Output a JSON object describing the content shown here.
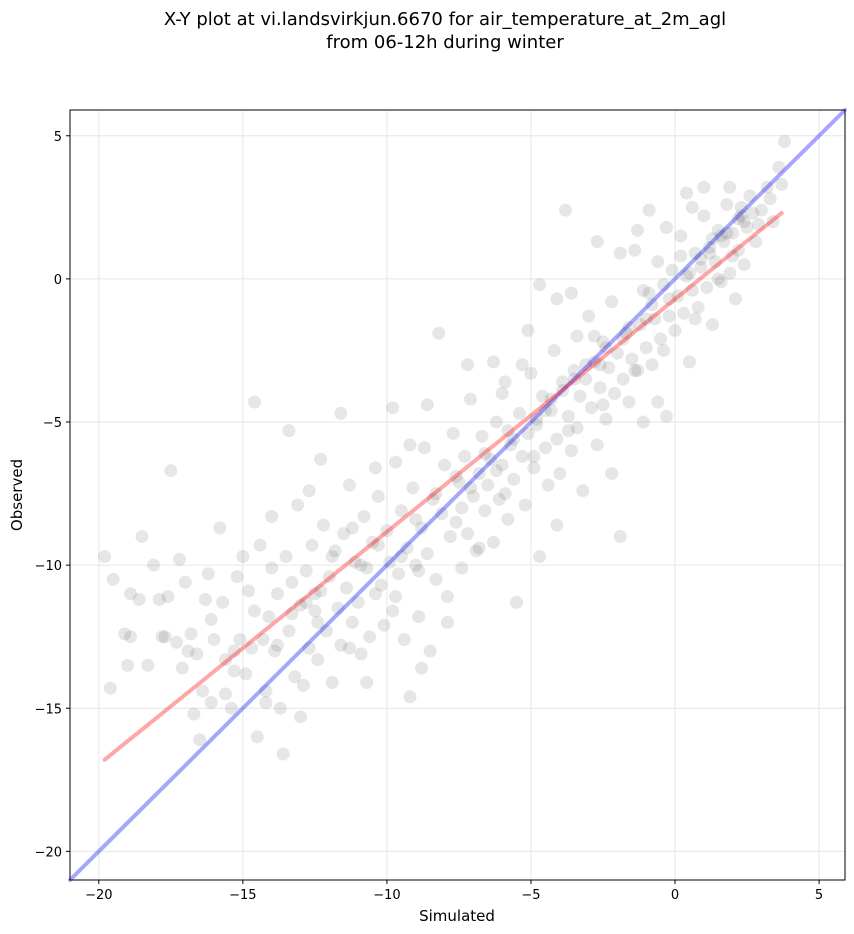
{
  "chart_data": {
    "type": "scatter",
    "title": "X-Y plot at vi.landsvirkjun.6670 for air_temperature_at_2m_agl",
    "subtitle": "from 06-12h during winter",
    "xlabel": "Simulated",
    "ylabel": "Observed",
    "xlim": [
      -21.0,
      5.9
    ],
    "ylim": [
      -21.0,
      5.9
    ],
    "xticks": [
      -20,
      -15,
      -10,
      -5,
      0,
      5
    ],
    "yticks": [
      -20,
      -15,
      -10,
      -5,
      0,
      5
    ],
    "xtick_labels": [
      "−20",
      "−15",
      "−10",
      "−5",
      "0",
      "5"
    ],
    "ytick_labels": [
      "−20",
      "−15",
      "−10",
      "−5",
      "0",
      "5"
    ],
    "grid": true,
    "point_color": "#333333",
    "point_opacity": 0.12,
    "lines": [
      {
        "color": "#0000ff",
        "opacity": 0.35,
        "x": [
          -21.0,
          5.9
        ],
        "y": [
          -21.0,
          5.9
        ]
      },
      {
        "color": "#ff0000",
        "opacity": 0.35,
        "x": [
          -19.8,
          3.7
        ],
        "y": [
          -16.8,
          2.3
        ]
      }
    ],
    "points": [
      [
        -19.8,
        -9.7
      ],
      [
        -19.6,
        -14.3
      ],
      [
        -19.5,
        -10.5
      ],
      [
        -19.1,
        -12.4
      ],
      [
        -19.0,
        -13.5
      ],
      [
        -18.9,
        -11.0
      ],
      [
        -18.6,
        -11.2
      ],
      [
        -18.5,
        -9.0
      ],
      [
        -18.3,
        -13.5
      ],
      [
        -18.1,
        -10.0
      ],
      [
        -17.9,
        -11.2
      ],
      [
        -17.8,
        -12.5
      ],
      [
        -17.6,
        -11.1
      ],
      [
        -17.5,
        -6.7
      ],
      [
        -17.3,
        -12.7
      ],
      [
        -17.2,
        -9.8
      ],
      [
        -17.1,
        -13.6
      ],
      [
        -17.0,
        -10.6
      ],
      [
        -16.8,
        -12.4
      ],
      [
        -16.7,
        -15.2
      ],
      [
        -16.6,
        -13.1
      ],
      [
        -16.5,
        -16.1
      ],
      [
        -16.3,
        -11.2
      ],
      [
        -16.2,
        -10.3
      ],
      [
        -16.1,
        -14.8
      ],
      [
        -16.0,
        -12.6
      ],
      [
        -15.8,
        -8.7
      ],
      [
        -15.7,
        -11.3
      ],
      [
        -15.6,
        -14.5
      ],
      [
        -15.4,
        -15.0
      ],
      [
        -15.3,
        -13.0
      ],
      [
        -15.2,
        -10.4
      ],
      [
        -15.1,
        -12.6
      ],
      [
        -15.0,
        -9.7
      ],
      [
        -14.9,
        -13.8
      ],
      [
        -14.8,
        -10.9
      ],
      [
        -14.6,
        -11.6
      ],
      [
        -14.5,
        -16.0
      ],
      [
        -14.4,
        -9.3
      ],
      [
        -14.3,
        -12.6
      ],
      [
        -14.2,
        -14.8
      ],
      [
        -14.1,
        -11.8
      ],
      [
        -14.0,
        -10.1
      ],
      [
        -13.9,
        -13.0
      ],
      [
        -13.8,
        -11.0
      ],
      [
        -13.7,
        -15.0
      ],
      [
        -13.6,
        -16.6
      ],
      [
        -13.5,
        -9.7
      ],
      [
        -13.4,
        -12.3
      ],
      [
        -13.3,
        -10.6
      ],
      [
        -13.2,
        -13.9
      ],
      [
        -13.1,
        -7.9
      ],
      [
        -13.0,
        -11.4
      ],
      [
        -12.9,
        -14.2
      ],
      [
        -12.8,
        -10.2
      ],
      [
        -12.7,
        -12.9
      ],
      [
        -12.6,
        -9.3
      ],
      [
        -12.5,
        -11.6
      ],
      [
        -12.4,
        -13.3
      ],
      [
        -12.3,
        -10.9
      ],
      [
        -12.2,
        -8.6
      ],
      [
        -12.1,
        -12.3
      ],
      [
        -12.0,
        -10.4
      ],
      [
        -11.9,
        -14.1
      ],
      [
        -11.8,
        -9.5
      ],
      [
        -11.7,
        -11.5
      ],
      [
        -11.6,
        -12.8
      ],
      [
        -11.5,
        -8.9
      ],
      [
        -11.4,
        -10.8
      ],
      [
        -11.3,
        -7.2
      ],
      [
        -11.2,
        -12.0
      ],
      [
        -11.1,
        -9.9
      ],
      [
        -11.0,
        -11.3
      ],
      [
        -10.9,
        -13.1
      ],
      [
        -10.8,
        -8.3
      ],
      [
        -10.7,
        -10.1
      ],
      [
        -10.6,
        -12.5
      ],
      [
        -10.5,
        -9.2
      ],
      [
        -10.4,
        -11.0
      ],
      [
        -10.3,
        -7.6
      ],
      [
        -10.2,
        -10.7
      ],
      [
        -10.1,
        -12.1
      ],
      [
        -10.0,
        -8.8
      ],
      [
        -9.9,
        -9.9
      ],
      [
        -9.8,
        -11.6
      ],
      [
        -9.7,
        -6.4
      ],
      [
        -9.6,
        -10.3
      ],
      [
        -9.5,
        -8.1
      ],
      [
        -9.4,
        -12.6
      ],
      [
        -9.3,
        -9.4
      ],
      [
        -9.2,
        -14.6
      ],
      [
        -9.1,
        -7.3
      ],
      [
        -9.0,
        -10.0
      ],
      [
        -8.9,
        -11.8
      ],
      [
        -8.8,
        -8.7
      ],
      [
        -8.7,
        -5.9
      ],
      [
        -8.6,
        -9.6
      ],
      [
        -8.5,
        -13.0
      ],
      [
        -8.4,
        -7.7
      ],
      [
        -8.3,
        -10.5
      ],
      [
        -8.2,
        -1.9
      ],
      [
        -8.1,
        -8.2
      ],
      [
        -8.0,
        -6.5
      ],
      [
        -7.9,
        -11.1
      ],
      [
        -7.8,
        -9.0
      ],
      [
        -7.7,
        -5.4
      ],
      [
        -7.6,
        -8.5
      ],
      [
        -7.5,
        -7.1
      ],
      [
        -7.4,
        -10.1
      ],
      [
        -7.3,
        -6.2
      ],
      [
        -7.2,
        -8.9
      ],
      [
        -7.1,
        -4.2
      ],
      [
        -7.0,
        -7.6
      ],
      [
        -6.9,
        -9.5
      ],
      [
        -6.8,
        -6.8
      ],
      [
        -6.7,
        -5.5
      ],
      [
        -6.6,
        -8.1
      ],
      [
        -6.5,
        -7.2
      ],
      [
        -6.4,
        -6.3
      ],
      [
        -6.3,
        -9.2
      ],
      [
        -6.2,
        -5.0
      ],
      [
        -6.1,
        -7.7
      ],
      [
        -6.0,
        -6.5
      ],
      [
        -5.9,
        -3.6
      ],
      [
        -5.8,
        -8.4
      ],
      [
        -5.7,
        -5.8
      ],
      [
        -5.6,
        -7.0
      ],
      [
        -5.5,
        -11.3
      ],
      [
        -5.4,
        -4.7
      ],
      [
        -5.3,
        -6.2
      ],
      [
        -5.2,
        -7.9
      ],
      [
        -5.1,
        -5.4
      ],
      [
        -5.0,
        -3.3
      ],
      [
        -4.9,
        -6.6
      ],
      [
        -4.8,
        -5.1
      ],
      [
        -4.7,
        -9.7
      ],
      [
        -4.6,
        -4.1
      ],
      [
        -4.5,
        -5.9
      ],
      [
        -4.4,
        -7.2
      ],
      [
        -4.3,
        -4.6
      ],
      [
        -4.2,
        -2.5
      ],
      [
        -4.1,
        -5.6
      ],
      [
        -4.0,
        -6.8
      ],
      [
        -3.9,
        -3.9
      ],
      [
        -3.8,
        2.4
      ],
      [
        -3.7,
        -4.8
      ],
      [
        -3.6,
        -6.0
      ],
      [
        -3.5,
        -3.2
      ],
      [
        -3.4,
        -5.2
      ],
      [
        -3.3,
        -4.1
      ],
      [
        -3.2,
        -7.4
      ],
      [
        -3.1,
        -3.5
      ],
      [
        -3.0,
        -1.3
      ],
      [
        -2.9,
        -4.5
      ],
      [
        -2.8,
        -2.9
      ],
      [
        -2.7,
        -5.8
      ],
      [
        -2.6,
        -3.8
      ],
      [
        -2.5,
        -2.2
      ],
      [
        -2.4,
        -4.9
      ],
      [
        -2.3,
        -3.1
      ],
      [
        -2.2,
        -0.8
      ],
      [
        -2.1,
        -4.0
      ],
      [
        -2.0,
        -2.6
      ],
      [
        -1.9,
        -9.0
      ],
      [
        -1.8,
        -3.5
      ],
      [
        -1.7,
        -1.9
      ],
      [
        -1.6,
        -4.3
      ],
      [
        -1.5,
        -2.8
      ],
      [
        -1.4,
        1.0
      ],
      [
        -1.3,
        -3.2
      ],
      [
        -1.2,
        -1.6
      ],
      [
        -1.1,
        -5.0
      ],
      [
        -1.0,
        -2.4
      ],
      [
        -0.9,
        -0.5
      ],
      [
        -0.8,
        -3.0
      ],
      [
        -0.7,
        -1.4
      ],
      [
        -0.6,
        0.6
      ],
      [
        -0.5,
        -2.1
      ],
      [
        -0.4,
        -0.2
      ],
      [
        -0.3,
        -4.8
      ],
      [
        -0.2,
        -1.3
      ],
      [
        -0.1,
        0.3
      ],
      [
        0.0,
        -1.8
      ],
      [
        0.1,
        -0.6
      ],
      [
        0.2,
        1.5
      ],
      [
        0.3,
        -1.2
      ],
      [
        0.4,
        0.1
      ],
      [
        0.5,
        -2.9
      ],
      [
        0.6,
        -0.4
      ],
      [
        0.7,
        0.9
      ],
      [
        0.8,
        -1.0
      ],
      [
        0.9,
        0.4
      ],
      [
        1.0,
        2.2
      ],
      [
        1.1,
        -0.3
      ],
      [
        1.2,
        1.1
      ],
      [
        1.3,
        -1.6
      ],
      [
        1.4,
        0.6
      ],
      [
        1.5,
        1.7
      ],
      [
        1.6,
        -0.1
      ],
      [
        1.7,
        1.3
      ],
      [
        1.8,
        2.6
      ],
      [
        1.9,
        0.2
      ],
      [
        2.0,
        1.6
      ],
      [
        2.1,
        -0.7
      ],
      [
        2.2,
        1.0
      ],
      [
        2.3,
        2.2
      ],
      [
        2.4,
        0.5
      ],
      [
        2.5,
        1.8
      ],
      [
        2.6,
        2.9
      ],
      [
        2.8,
        1.3
      ],
      [
        3.0,
        2.4
      ],
      [
        3.2,
        3.2
      ],
      [
        3.4,
        2.0
      ],
      [
        3.6,
        3.9
      ],
      [
        3.8,
        4.8
      ],
      [
        3.7,
        3.3
      ],
      [
        -13.4,
        -5.3
      ],
      [
        -14.6,
        -4.3
      ],
      [
        -12.3,
        -6.3
      ],
      [
        -11.6,
        -4.7
      ],
      [
        -9.8,
        -4.5
      ],
      [
        -8.6,
        -4.4
      ],
      [
        -7.2,
        -3.0
      ],
      [
        -6.3,
        -2.9
      ],
      [
        -5.1,
        -1.8
      ],
      [
        -4.1,
        -0.7
      ],
      [
        -4.7,
        -0.2
      ],
      [
        -2.7,
        1.3
      ],
      [
        -1.9,
        0.9
      ],
      [
        -0.9,
        2.4
      ],
      [
        -0.3,
        1.8
      ],
      [
        0.6,
        2.5
      ],
      [
        -1.3,
        1.7
      ],
      [
        0.4,
        3.0
      ],
      [
        1.0,
        3.2
      ],
      [
        1.9,
        3.2
      ],
      [
        -15.6,
        -13.3
      ],
      [
        -14.0,
        -8.3
      ],
      [
        -12.7,
        -7.4
      ],
      [
        -16.9,
        -13.0
      ],
      [
        -10.4,
        -6.6
      ],
      [
        -9.2,
        -5.8
      ],
      [
        -6.8,
        -9.4
      ],
      [
        -3.6,
        -0.5
      ],
      [
        -2.2,
        -6.8
      ],
      [
        -0.6,
        -4.3
      ],
      [
        -4.1,
        -8.6
      ],
      [
        -7.9,
        -12.0
      ],
      [
        -8.8,
        -13.6
      ],
      [
        -10.7,
        -14.1
      ],
      [
        -11.3,
        -12.9
      ],
      [
        -13.0,
        -15.3
      ],
      [
        -14.2,
        -14.4
      ],
      [
        -6.0,
        -4.0
      ],
      [
        -5.3,
        -3.0
      ],
      [
        -3.4,
        -2.0
      ],
      [
        -2.8,
        -2.0
      ],
      [
        -1.1,
        -0.4
      ],
      [
        0.2,
        0.8
      ],
      [
        1.3,
        1.4
      ],
      [
        2.2,
        2.1
      ],
      [
        2.7,
        2.3
      ],
      [
        -11.9,
        -9.7
      ],
      [
        -12.8,
        -11.3
      ],
      [
        -9.5,
        -9.7
      ],
      [
        -8.3,
        -7.5
      ],
      [
        -7.6,
        -6.9
      ],
      [
        -6.6,
        -6.1
      ],
      [
        -5.8,
        -5.3
      ],
      [
        -4.5,
        -4.6
      ],
      [
        -3.9,
        -3.6
      ],
      [
        -3.1,
        -3.0
      ],
      [
        -2.4,
        -2.4
      ],
      [
        -1.6,
        -1.7
      ],
      [
        -0.8,
        -0.9
      ],
      [
        0.9,
        0.7
      ],
      [
        1.6,
        1.5
      ],
      [
        2.4,
        2.0
      ],
      [
        -10.9,
        -10.0
      ],
      [
        -12.5,
        -11.0
      ],
      [
        -13.8,
        -12.8
      ],
      [
        -15.3,
        -13.7
      ],
      [
        -16.4,
        -14.4
      ],
      [
        -9.0,
        -8.4
      ],
      [
        -7.1,
        -7.3
      ],
      [
        -6.2,
        -6.7
      ],
      [
        -5.6,
        -5.6
      ],
      [
        -4.8,
        -4.9
      ],
      [
        -4.3,
        -4.2
      ],
      [
        -3.5,
        -3.5
      ],
      [
        -2.6,
        -3.0
      ],
      [
        -1.8,
        -2.1
      ],
      [
        -1.0,
        -1.4
      ],
      [
        -0.2,
        -0.7
      ],
      [
        0.5,
        0.2
      ],
      [
        1.2,
        0.9
      ],
      [
        1.8,
        1.6
      ],
      [
        2.3,
        2.5
      ],
      [
        -11.2,
        -8.7
      ],
      [
        -10.3,
        -9.3
      ],
      [
        -8.9,
        -10.2
      ],
      [
        -12.4,
        -12.0
      ],
      [
        -13.3,
        -11.7
      ],
      [
        -14.7,
        -12.9
      ],
      [
        -9.7,
        -11.1
      ],
      [
        -7.4,
        -8.0
      ],
      [
        -5.9,
        -7.5
      ],
      [
        -4.9,
        -6.2
      ],
      [
        -3.7,
        -5.3
      ],
      [
        -2.5,
        -4.4
      ],
      [
        -1.4,
        -3.2
      ],
      [
        -0.4,
        -2.5
      ],
      [
        0.7,
        -1.4
      ],
      [
        1.5,
        0.0
      ],
      [
        2.0,
        0.8
      ],
      [
        2.9,
        1.9
      ],
      [
        3.3,
        2.8
      ],
      [
        -17.7,
        -12.5
      ],
      [
        -18.9,
        -12.5
      ],
      [
        -16.1,
        -11.9
      ]
    ]
  }
}
